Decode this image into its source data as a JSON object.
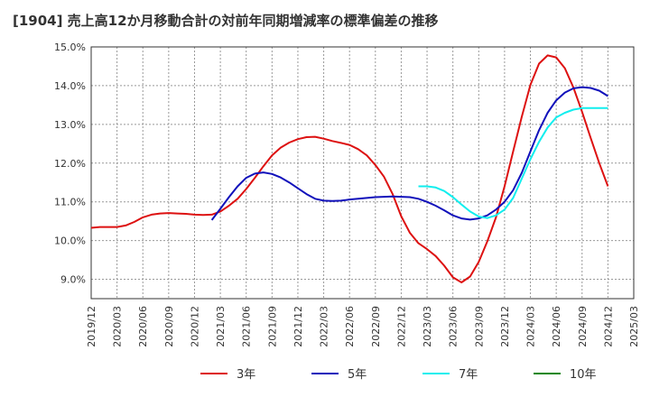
{
  "title": "[1904]  売上高12か月移動合計の対前年同期増減率の標準偏差の推移",
  "chart_data": {
    "type": "line",
    "title": "[1904]  売上高12か月移動合計の対前年同期増減率の標準偏差の推移",
    "xlabel": "",
    "ylabel": "",
    "ylim": [
      8.5,
      15.0
    ],
    "y_ticks": [
      "9.0%",
      "10.0%",
      "11.0%",
      "12.0%",
      "13.0%",
      "14.0%",
      "15.0%"
    ],
    "y_tick_values": [
      9.0,
      10.0,
      11.0,
      12.0,
      13.0,
      14.0,
      15.0
    ],
    "x_ticks": [
      "2019/12",
      "2020/03",
      "2020/06",
      "2020/09",
      "2020/12",
      "2021/03",
      "2021/06",
      "2021/09",
      "2021/12",
      "2022/03",
      "2022/06",
      "2022/09",
      "2022/12",
      "2023/03",
      "2023/06",
      "2023/09",
      "2023/12",
      "2024/03",
      "2024/06",
      "2024/09",
      "2024/12",
      "2025/03"
    ],
    "x_start": "2019/12",
    "x_end": "2025/03",
    "grid": true,
    "legend_position": "bottom",
    "series": [
      {
        "name": "3年",
        "color": "#dd1111",
        "x": [
          "2019/12",
          "2020/01",
          "2020/02",
          "2020/03",
          "2020/04",
          "2020/05",
          "2020/06",
          "2020/07",
          "2020/08",
          "2020/09",
          "2020/10",
          "2020/11",
          "2020/12",
          "2021/01",
          "2021/02",
          "2021/03",
          "2021/04",
          "2021/05",
          "2021/06",
          "2021/07",
          "2021/08",
          "2021/09",
          "2021/10",
          "2021/11",
          "2021/12",
          "2022/01",
          "2022/02",
          "2022/03",
          "2022/04",
          "2022/05",
          "2022/06",
          "2022/07",
          "2022/08",
          "2022/09",
          "2022/10",
          "2022/11",
          "2022/12",
          "2023/01",
          "2023/02",
          "2023/03",
          "2023/04",
          "2023/05",
          "2023/06",
          "2023/07",
          "2023/08",
          "2023/09",
          "2023/10",
          "2023/11",
          "2023/12",
          "2024/01",
          "2024/02",
          "2024/03",
          "2024/04",
          "2024/05",
          "2024/06",
          "2024/07",
          "2024/08",
          "2024/09",
          "2024/10",
          "2024/11",
          "2024/12"
        ],
        "values": [
          10.33,
          10.35,
          10.35,
          10.35,
          10.39,
          10.48,
          10.6,
          10.67,
          10.7,
          10.71,
          10.7,
          10.69,
          10.67,
          10.66,
          10.67,
          10.75,
          10.9,
          11.08,
          11.33,
          11.62,
          11.92,
          12.2,
          12.4,
          12.53,
          12.62,
          12.67,
          12.68,
          12.63,
          12.57,
          12.52,
          12.47,
          12.36,
          12.2,
          11.95,
          11.65,
          11.2,
          10.63,
          10.2,
          9.93,
          9.78,
          9.6,
          9.35,
          9.05,
          8.92,
          9.07,
          9.45,
          9.98,
          10.6,
          11.4,
          12.3,
          13.2,
          14.02,
          14.57,
          14.78,
          14.73,
          14.45,
          13.95,
          13.32,
          12.65,
          12.0,
          11.4
        ]
      },
      {
        "name": "5年",
        "color": "#1111bb",
        "x": [
          "2021/02",
          "2021/03",
          "2021/04",
          "2021/05",
          "2021/06",
          "2021/07",
          "2021/08",
          "2021/09",
          "2021/10",
          "2021/11",
          "2021/12",
          "2022/01",
          "2022/02",
          "2022/03",
          "2022/04",
          "2022/05",
          "2022/06",
          "2022/07",
          "2022/08",
          "2022/09",
          "2022/10",
          "2022/11",
          "2022/12",
          "2023/01",
          "2023/02",
          "2023/03",
          "2023/04",
          "2023/05",
          "2023/06",
          "2023/07",
          "2023/08",
          "2023/09",
          "2023/10",
          "2023/11",
          "2023/12",
          "2024/01",
          "2024/02",
          "2024/03",
          "2024/04",
          "2024/05",
          "2024/06",
          "2024/07",
          "2024/08",
          "2024/09",
          "2024/10",
          "2024/11",
          "2024/12"
        ],
        "values": [
          10.53,
          10.82,
          11.12,
          11.4,
          11.62,
          11.73,
          11.76,
          11.72,
          11.63,
          11.5,
          11.35,
          11.2,
          11.08,
          11.03,
          11.02,
          11.03,
          11.06,
          11.08,
          11.1,
          11.12,
          11.13,
          11.14,
          11.13,
          11.12,
          11.08,
          11.0,
          10.9,
          10.78,
          10.65,
          10.57,
          10.54,
          10.57,
          10.65,
          10.8,
          11.0,
          11.3,
          11.75,
          12.3,
          12.85,
          13.3,
          13.62,
          13.82,
          13.93,
          13.96,
          13.94,
          13.87,
          13.73
        ]
      },
      {
        "name": "7年",
        "color": "#11eeee",
        "x": [
          "2023/02",
          "2023/03",
          "2023/04",
          "2023/05",
          "2023/06",
          "2023/07",
          "2023/08",
          "2023/09",
          "2023/10",
          "2023/11",
          "2023/12",
          "2024/01",
          "2024/02",
          "2024/03",
          "2024/04",
          "2024/05",
          "2024/06",
          "2024/07",
          "2024/08",
          "2024/09",
          "2024/10",
          "2024/11",
          "2024/12"
        ],
        "values": [
          11.4,
          11.4,
          11.37,
          11.28,
          11.12,
          10.93,
          10.75,
          10.62,
          10.58,
          10.65,
          10.8,
          11.1,
          11.6,
          12.1,
          12.55,
          12.92,
          13.18,
          13.3,
          13.38,
          13.42,
          13.42,
          13.42,
          13.42
        ]
      },
      {
        "name": "10年",
        "color": "#118811",
        "x": [],
        "values": []
      }
    ]
  }
}
